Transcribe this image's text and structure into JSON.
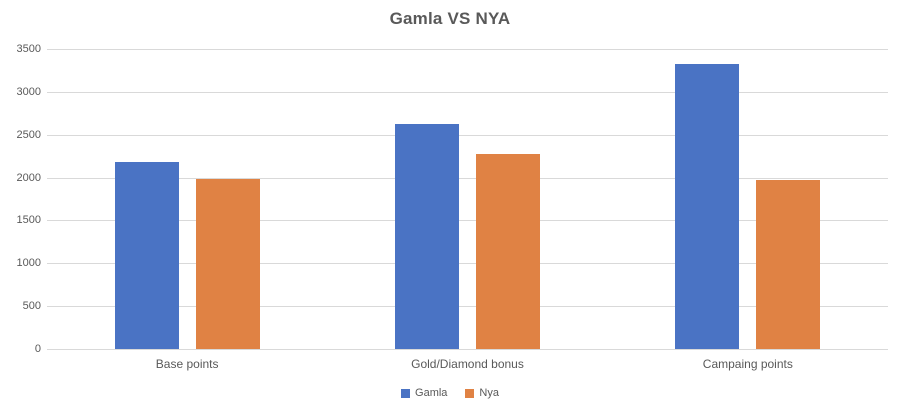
{
  "chart_data": {
    "type": "bar",
    "title": "Gamla VS NYA",
    "categories": [
      "Base points",
      "Gold/Diamond bonus",
      "Campaing points"
    ],
    "series": [
      {
        "name": "Gamla",
        "color": "#4A73C4",
        "values": [
          2180,
          2630,
          3320
        ]
      },
      {
        "name": "Nya",
        "color": "#E08244",
        "values": [
          1980,
          2280,
          1970
        ]
      }
    ],
    "xlabel": "",
    "ylabel": "",
    "ylim": [
      0,
      3500
    ],
    "yticks": [
      0,
      500,
      1000,
      1500,
      2000,
      2500,
      3000,
      3500
    ],
    "grid": true,
    "legend_position": "bottom"
  },
  "colors": {
    "text": "#595959",
    "gridline": "#d9d9d9",
    "background": "#ffffff"
  }
}
